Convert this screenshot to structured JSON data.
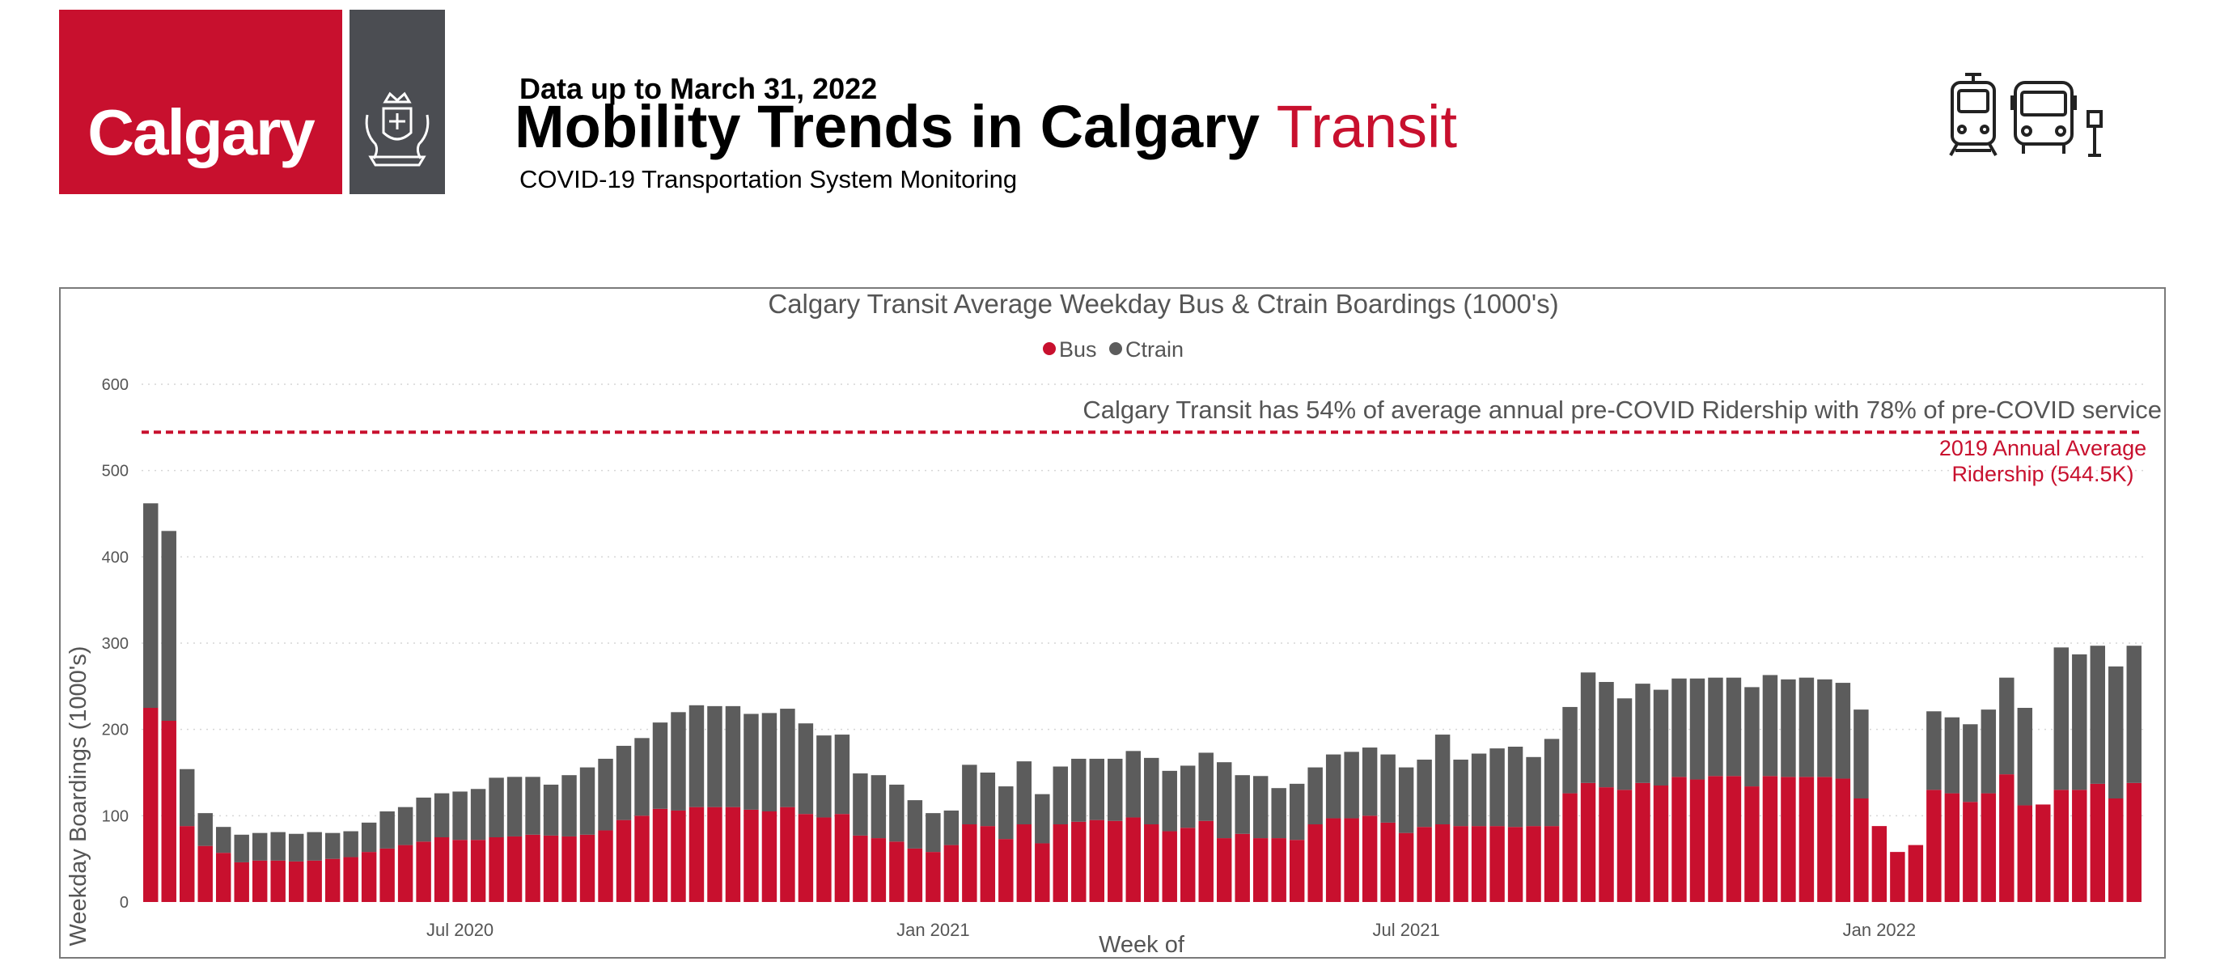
{
  "header": {
    "logo_text": "Calgary",
    "data_date": "Data up to March 31, 2022",
    "title_main": "Mobility Trends in Calgary",
    "title_accent": "Transit",
    "subtitle": "COVID-19 Transportation System Monitoring"
  },
  "icons": {
    "crest": "city-crest-icon",
    "modes": [
      "ctrain-icon",
      "bus-icon",
      "bus-stop-icon"
    ]
  },
  "colors": {
    "brand_red": "#c8102e",
    "ctrain_grey": "#5c5c5c",
    "logo_grey": "#4b4d52"
  },
  "chart_data": {
    "type": "bar",
    "stacked": true,
    "title": "Calgary Transit Average Weekday Bus & Ctrain Boardings (1000's)",
    "xlabel": "Week of",
    "ylabel": "Weekday Boardings (1000's)",
    "ylim": [
      0,
      600
    ],
    "yticks": [
      0,
      100,
      200,
      300,
      400,
      500,
      600
    ],
    "grid": true,
    "legend_position": "top-center",
    "x_tick_labels": [
      {
        "label": "Jul 2020",
        "week_index": 17.5
      },
      {
        "label": "Jan 2021",
        "week_index": 43.5
      },
      {
        "label": "Jul 2021",
        "week_index": 69.5
      },
      {
        "label": "Jan 2022",
        "week_index": 95.5
      }
    ],
    "series": [
      {
        "name": "Bus",
        "color": "#c8102e",
        "values": [
          225,
          210,
          88,
          65,
          57,
          46,
          48,
          48,
          47,
          48,
          50,
          52,
          58,
          62,
          66,
          70,
          75,
          72,
          72,
          75,
          76,
          78,
          77,
          76,
          78,
          83,
          95,
          100,
          108,
          106,
          110,
          110,
          110,
          107,
          105,
          110,
          102,
          98,
          102,
          77,
          74,
          70,
          62,
          58,
          66,
          90,
          88,
          73,
          90,
          68,
          90,
          93,
          95,
          94,
          98,
          90,
          82,
          86,
          94,
          74,
          79,
          74,
          74,
          72,
          90,
          97,
          97,
          100,
          92,
          80,
          87,
          90,
          88,
          88,
          88,
          87,
          88,
          88,
          126,
          138,
          133,
          130,
          138,
          135,
          145,
          142,
          146,
          146,
          134,
          146,
          145,
          145,
          145,
          143,
          120,
          88,
          58,
          66,
          130,
          126,
          116,
          126,
          148,
          112,
          113,
          130,
          130,
          137,
          120,
          138
        ]
      },
      {
        "name": "Ctrain",
        "color": "#5c5c5c",
        "values": [
          237,
          220,
          66,
          38,
          30,
          32,
          32,
          33,
          32,
          33,
          30,
          30,
          34,
          43,
          44,
          51,
          51,
          56,
          59,
          69,
          69,
          67,
          59,
          71,
          78,
          83,
          86,
          90,
          100,
          114,
          118,
          117,
          117,
          111,
          114,
          114,
          105,
          95,
          92,
          72,
          73,
          66,
          56,
          45,
          40,
          69,
          62,
          61,
          73,
          57,
          67,
          73,
          71,
          72,
          77,
          77,
          70,
          72,
          79,
          88,
          68,
          72,
          58,
          65,
          66,
          74,
          77,
          79,
          79,
          76,
          78,
          104,
          77,
          84,
          90,
          93,
          80,
          101,
          100,
          128,
          122,
          106,
          115,
          111,
          114,
          117,
          114,
          114,
          115,
          117,
          113,
          115,
          113,
          111,
          103,
          0,
          0,
          0,
          91,
          88,
          90,
          97,
          112,
          113,
          0,
          165,
          157,
          160,
          153,
          159
        ]
      }
    ],
    "reference_line": {
      "value": 544.5,
      "label_line1": "2019 Annual Average",
      "label_line2": "Ridership (544.5K)",
      "color": "#c8102e",
      "style": "dashed"
    },
    "annotation": "Calgary Transit has 54% of average annual pre-COVID Ridership with 78% of pre-COVID service"
  }
}
